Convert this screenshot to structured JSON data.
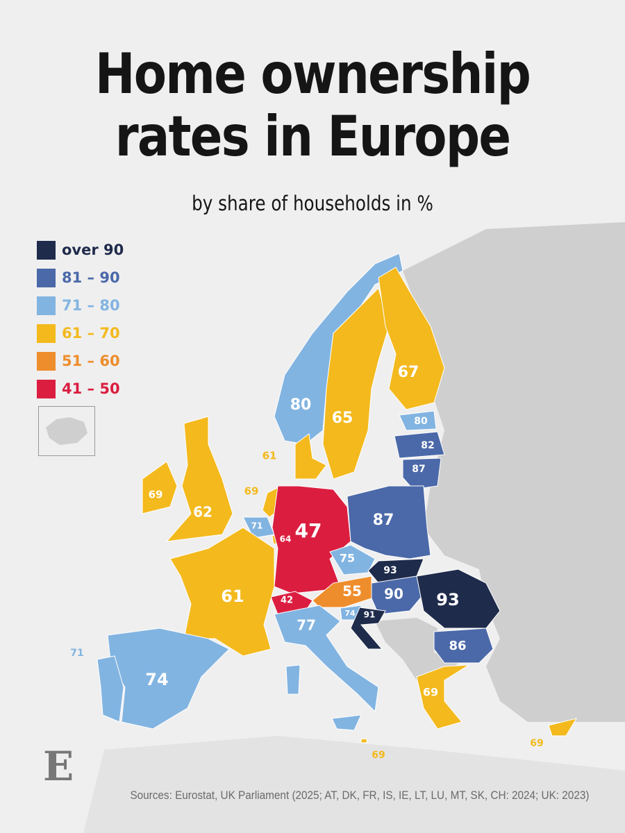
{
  "title": "Home ownership rates in Europe",
  "title_line1": "Home ownership",
  "title_line2": "rates in Europe",
  "subtitle": "by share of households in %",
  "legend": [
    {
      "label": "over 90",
      "color": "#1f2b4b"
    },
    {
      "label": "81 – 90",
      "color": "#4b69a9"
    },
    {
      "label": "71 – 80",
      "color": "#82b4e1"
    },
    {
      "label": "61 – 70",
      "color": "#f3b91d"
    },
    {
      "label": "51 – 60",
      "color": "#ee8d2c"
    },
    {
      "label": "41 – 50",
      "color": "#db1e40"
    }
  ],
  "no_data_color": "#cfcfcf",
  "countries": [
    {
      "code": "NO",
      "value": "80",
      "cat": 2
    },
    {
      "code": "SE",
      "value": "65",
      "cat": 3
    },
    {
      "code": "FI",
      "value": "67",
      "cat": 3
    },
    {
      "code": "EE",
      "value": "80",
      "cat": 2
    },
    {
      "code": "LV",
      "value": "82",
      "cat": 1
    },
    {
      "code": "LT",
      "value": "87",
      "cat": 1
    },
    {
      "code": "DK",
      "value": "61",
      "cat": 3
    },
    {
      "code": "IE",
      "value": "69",
      "cat": 3
    },
    {
      "code": "UK",
      "value": "62",
      "cat": 3
    },
    {
      "code": "NL",
      "value": "69",
      "cat": 3
    },
    {
      "code": "BE",
      "value": "71",
      "cat": 2
    },
    {
      "code": "LU",
      "value": "64",
      "cat": 3
    },
    {
      "code": "DE",
      "value": "47",
      "cat": 5
    },
    {
      "code": "PL",
      "value": "87",
      "cat": 1
    },
    {
      "code": "CZ",
      "value": "75",
      "cat": 2
    },
    {
      "code": "SK",
      "value": "93",
      "cat": 0
    },
    {
      "code": "AT",
      "value": "55",
      "cat": 4
    },
    {
      "code": "HU",
      "value": "90",
      "cat": 1
    },
    {
      "code": "RO",
      "value": "93",
      "cat": 0
    },
    {
      "code": "CH",
      "value": "42",
      "cat": 5
    },
    {
      "code": "SI",
      "value": "74",
      "cat": 2
    },
    {
      "code": "HR",
      "value": "91",
      "cat": 0
    },
    {
      "code": "FR",
      "value": "61",
      "cat": 3
    },
    {
      "code": "IT",
      "value": "77",
      "cat": 2
    },
    {
      "code": "ES",
      "value": "74",
      "cat": 2
    },
    {
      "code": "PT",
      "value": "71",
      "cat": 2
    },
    {
      "code": "BG",
      "value": "86",
      "cat": 1
    },
    {
      "code": "GR",
      "value": "69",
      "cat": 3
    },
    {
      "code": "MT",
      "value": "69",
      "cat": 3
    },
    {
      "code": "CY",
      "value": "69",
      "cat": 3
    }
  ],
  "source": "Sources: Eurostat, UK Parliament (2025; AT, DK, FR, IS, IE, LT, LU, MT, SK, CH: 2024; UK: 2023)",
  "logo_letter": "E"
}
